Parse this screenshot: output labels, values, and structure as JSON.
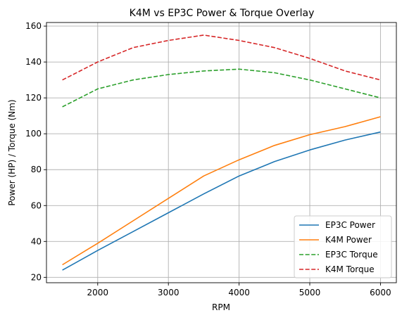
{
  "chart_data": {
    "type": "line",
    "title": "K4M vs EP3C Power & Torque Overlay",
    "xlabel": "RPM",
    "ylabel": "Power (HP) / Torque (Nm)",
    "xlim": [
      1275,
      6225
    ],
    "ylim": [
      17,
      162
    ],
    "x_ticks": [
      2000,
      3000,
      4000,
      5000,
      6000
    ],
    "y_ticks": [
      20,
      40,
      60,
      80,
      100,
      120,
      140,
      160
    ],
    "grid": true,
    "legend_position": "lower-right",
    "x": [
      1500,
      2000,
      2500,
      3000,
      3500,
      4000,
      4500,
      5000,
      5500,
      6000
    ],
    "series": [
      {
        "name": "EP3C Power",
        "color": "#1f77b4",
        "style": "solid",
        "values": [
          24,
          35,
          45.5,
          56,
          66.5,
          76.5,
          84.5,
          91,
          96.5,
          101
        ]
      },
      {
        "name": "K4M Power",
        "color": "#ff7f0e",
        "style": "solid",
        "values": [
          27,
          39,
          51.5,
          64,
          76.5,
          85.5,
          93.5,
          99.5,
          104,
          109.5
        ]
      },
      {
        "name": "EP3C Torque",
        "color": "#2ca02c",
        "style": "dashed",
        "values": [
          115,
          125,
          130,
          133,
          135,
          136,
          134,
          130,
          125,
          120
        ]
      },
      {
        "name": "K4M Torque",
        "color": "#d62728",
        "style": "dashed",
        "values": [
          130,
          140,
          148,
          152,
          155,
          152,
          148,
          142,
          135,
          130
        ]
      }
    ]
  }
}
